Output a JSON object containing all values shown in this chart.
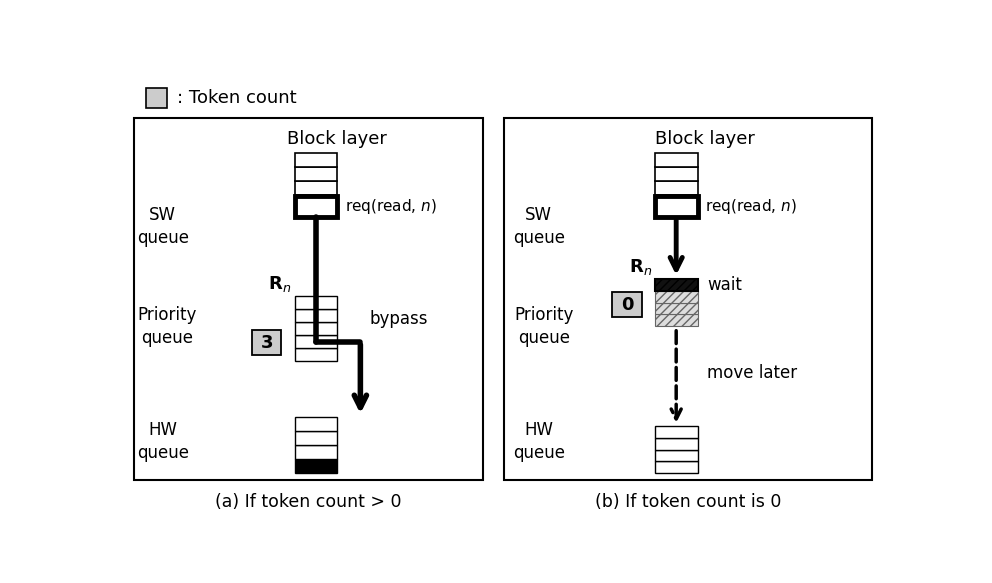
{
  "legend_text": ": Token count",
  "panel_a_caption": "(a) If token count > 0",
  "panel_b_caption": "(b) If token count is 0",
  "block_layer": "Block layer",
  "sw_queue_line1": "SW",
  "sw_queue_line2": "queue",
  "priority_queue_line1": "Priority",
  "priority_queue_line2": "queue",
  "hw_queue_line1": "HW",
  "hw_queue_line2": "queue",
  "req_label": "req(read, ",
  "req_italic": "n",
  "req_label_end": ")",
  "bypass_label": "bypass",
  "wait_label": "wait",
  "move_later_label": "move later",
  "token_a": "3",
  "token_b": "0",
  "bg_color": "#ffffff",
  "token_box_color": "#cccccc"
}
